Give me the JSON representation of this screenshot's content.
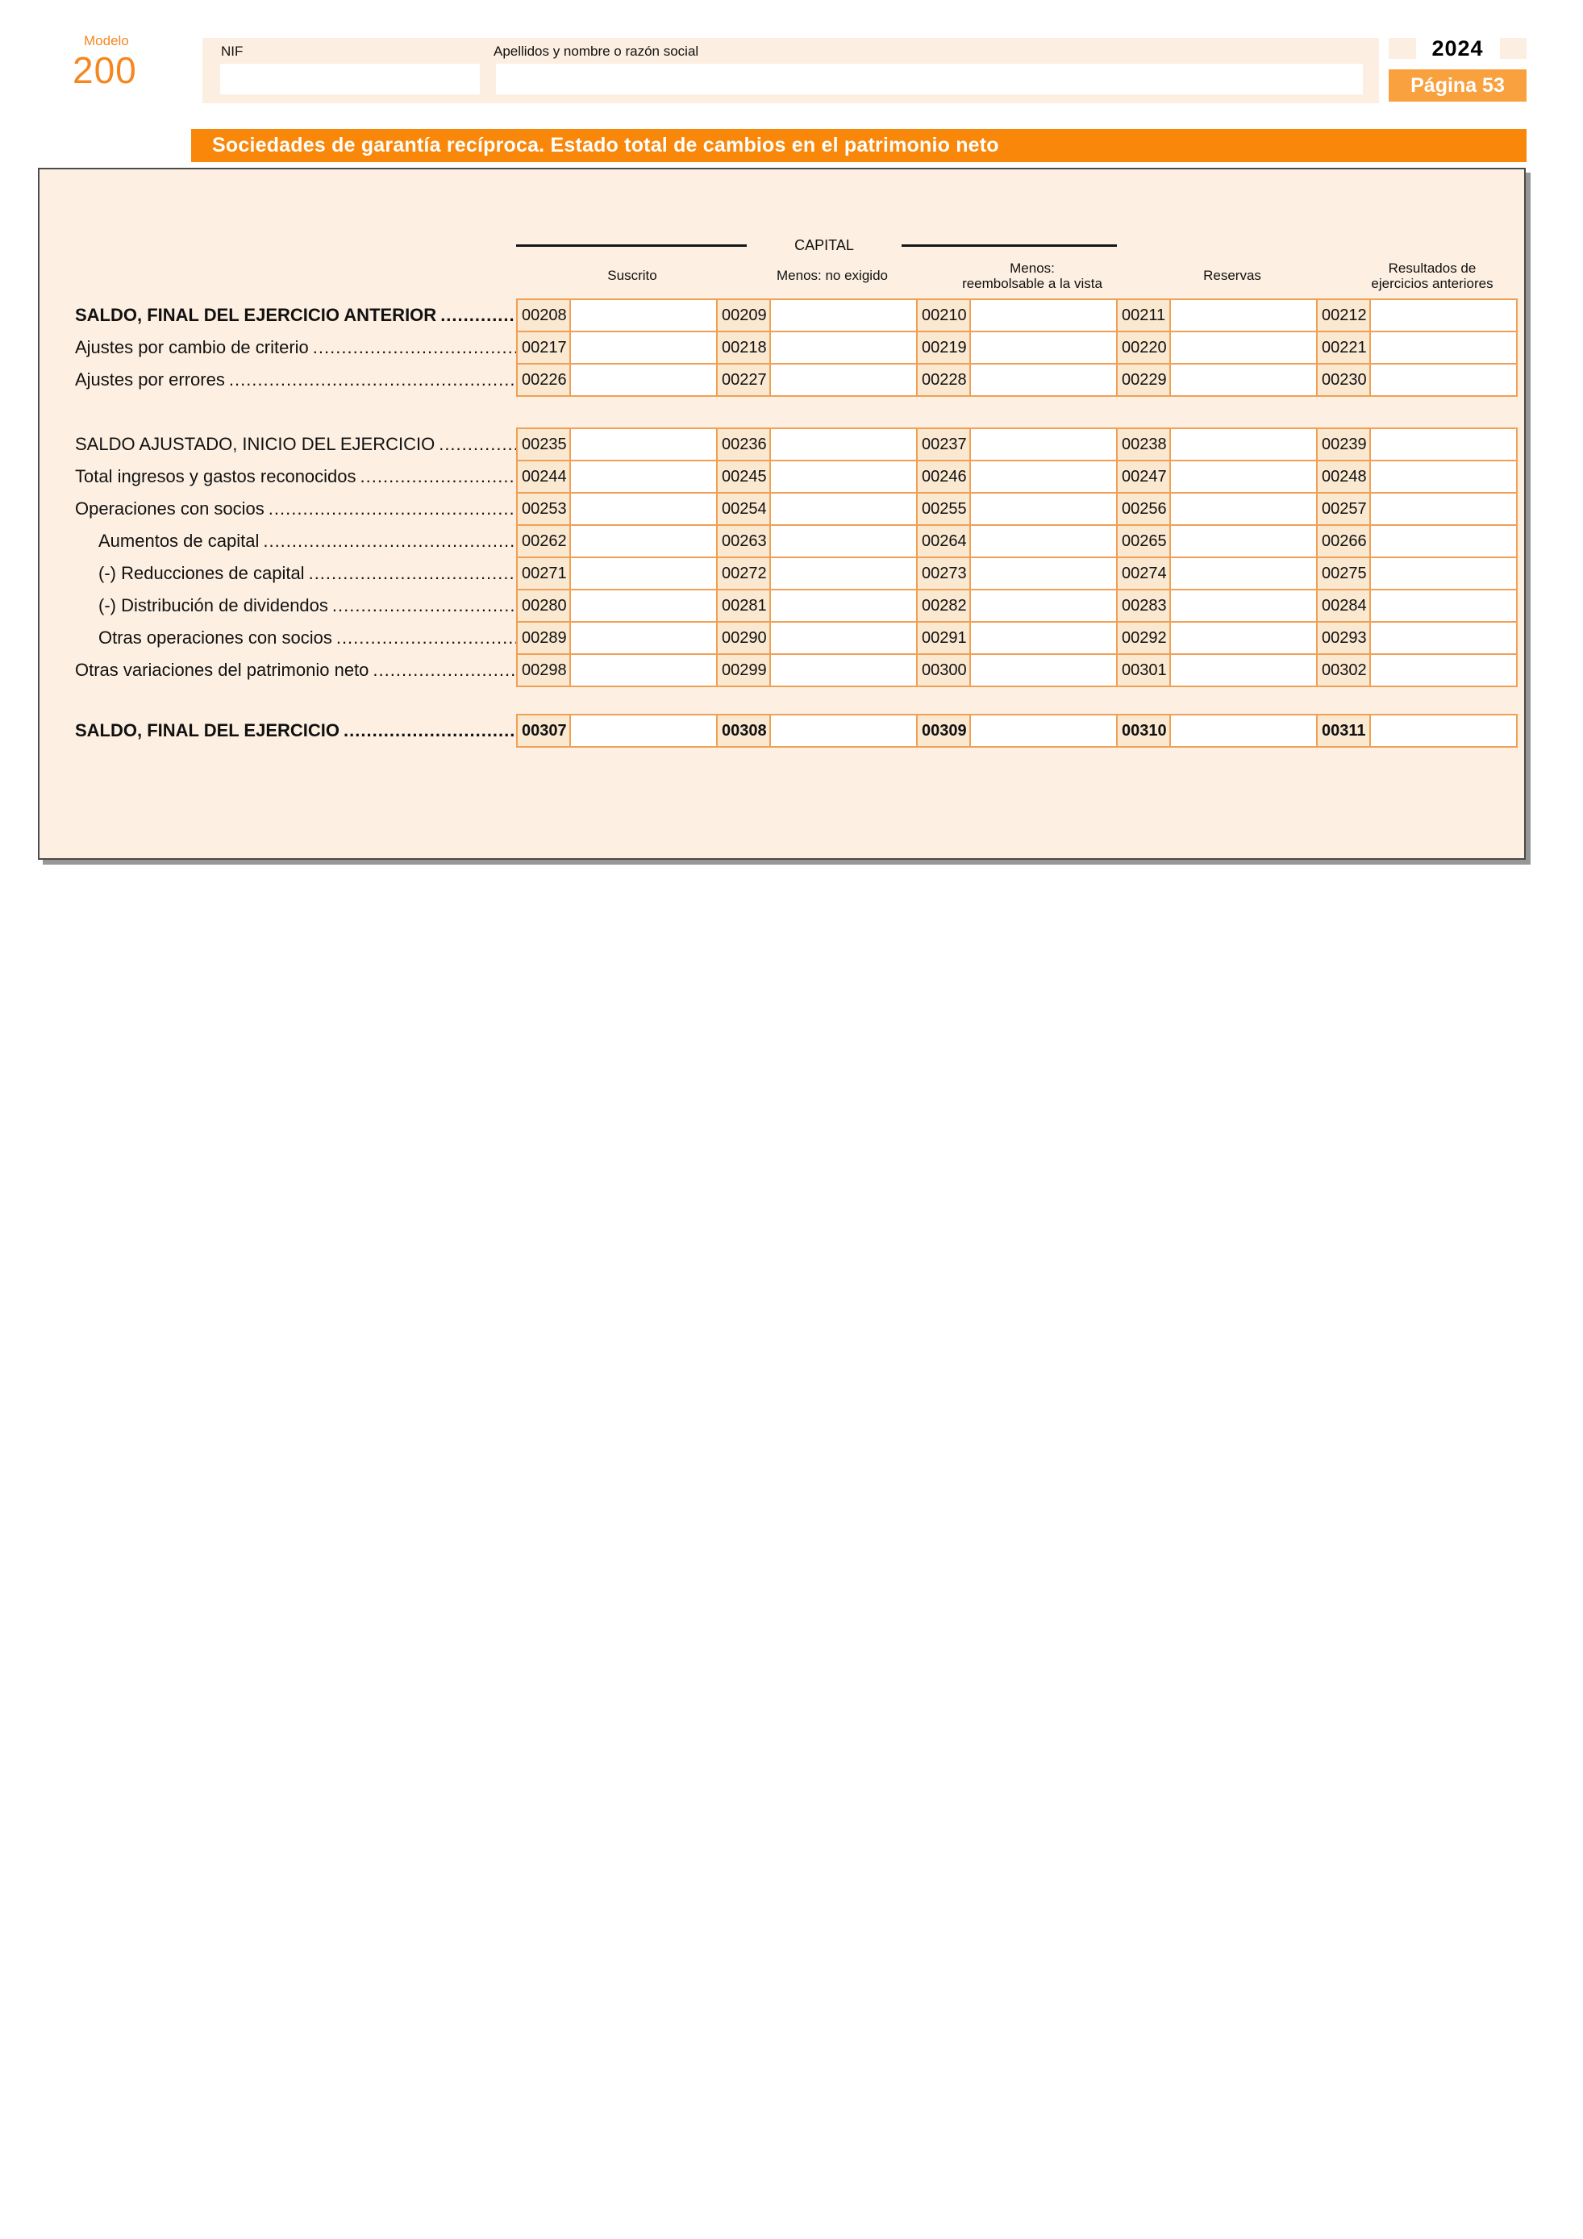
{
  "form": {
    "modelo_label": "Modelo",
    "modelo_number": "200",
    "year": "2024",
    "page_label": "Página 53",
    "nif_label": "NIF",
    "nif_value": "",
    "name_label": "Apellidos y nombre o razón social",
    "name_value": ""
  },
  "section_title": "Sociedades de garantía recíproca. Estado total de cambios en el patrimonio neto",
  "table": {
    "group_header": "CAPITAL",
    "columns": [
      {
        "lines": [
          "Suscrito"
        ]
      },
      {
        "lines": [
          "Menos: no exigido"
        ]
      },
      {
        "lines": [
          "Menos:",
          "reembolsable a la vista"
        ]
      },
      {
        "lines": [
          "Reservas"
        ]
      },
      {
        "lines": [
          "Resultados de",
          "ejercicios anteriores"
        ]
      }
    ],
    "rows": [
      {
        "label": "SALDO, FINAL DEL EJERCICIO ANTERIOR",
        "bold": true,
        "indent": false,
        "codes_bold": false,
        "codes": [
          "00208",
          "00209",
          "00210",
          "00211",
          "00212"
        ],
        "values": [
          "",
          "",
          "",
          "",
          ""
        ]
      },
      {
        "label": "Ajustes por cambio de criterio",
        "bold": false,
        "indent": false,
        "codes_bold": false,
        "codes": [
          "00217",
          "00218",
          "00219",
          "00220",
          "00221"
        ],
        "values": [
          "",
          "",
          "",
          "",
          ""
        ]
      },
      {
        "label": "Ajustes por errores",
        "bold": false,
        "indent": false,
        "codes_bold": false,
        "codes": [
          "00226",
          "00227",
          "00228",
          "00229",
          "00230"
        ],
        "values": [
          "",
          "",
          "",
          "",
          ""
        ]
      },
      {
        "label": "SALDO AJUSTADO, INICIO DEL EJERCICIO",
        "bold": false,
        "indent": false,
        "codes_bold": false,
        "codes": [
          "00235",
          "00236",
          "00237",
          "00238",
          "00239"
        ],
        "values": [
          "",
          "",
          "",
          "",
          ""
        ]
      },
      {
        "label": "Total ingresos y gastos reconocidos",
        "bold": false,
        "indent": false,
        "codes_bold": false,
        "codes": [
          "00244",
          "00245",
          "00246",
          "00247",
          "00248"
        ],
        "values": [
          "",
          "",
          "",
          "",
          ""
        ]
      },
      {
        "label": "Operaciones con socios",
        "bold": false,
        "indent": false,
        "codes_bold": false,
        "codes": [
          "00253",
          "00254",
          "00255",
          "00256",
          "00257"
        ],
        "values": [
          "",
          "",
          "",
          "",
          ""
        ]
      },
      {
        "label": "Aumentos de capital",
        "bold": false,
        "indent": true,
        "codes_bold": false,
        "codes": [
          "00262",
          "00263",
          "00264",
          "00265",
          "00266"
        ],
        "values": [
          "",
          "",
          "",
          "",
          ""
        ]
      },
      {
        "label": "(-) Reducciones de capital",
        "bold": false,
        "indent": true,
        "codes_bold": false,
        "codes": [
          "00271",
          "00272",
          "00273",
          "00274",
          "00275"
        ],
        "values": [
          "",
          "",
          "",
          "",
          ""
        ]
      },
      {
        "label": "(-) Distribución de dividendos",
        "bold": false,
        "indent": true,
        "codes_bold": false,
        "codes": [
          "00280",
          "00281",
          "00282",
          "00283",
          "00284"
        ],
        "values": [
          "",
          "",
          "",
          "",
          ""
        ]
      },
      {
        "label": "Otras operaciones con socios",
        "bold": false,
        "indent": true,
        "codes_bold": false,
        "codes": [
          "00289",
          "00290",
          "00291",
          "00292",
          "00293"
        ],
        "values": [
          "",
          "",
          "",
          "",
          ""
        ]
      },
      {
        "label": "Otras variaciones del patrimonio neto",
        "bold": false,
        "indent": false,
        "codes_bold": false,
        "codes": [
          "00298",
          "00299",
          "00300",
          "00301",
          "00302"
        ],
        "values": [
          "",
          "",
          "",
          "",
          ""
        ]
      },
      {
        "label": "SALDO, FINAL DEL EJERCICIO",
        "bold": true,
        "indent": false,
        "codes_bold": true,
        "codes": [
          "00307",
          "00308",
          "00309",
          "00310",
          "00311"
        ],
        "values": [
          "",
          "",
          "",
          "",
          ""
        ]
      }
    ]
  },
  "colors": {
    "accent_orange": "#F8870A",
    "badge_orange": "#F9A13F",
    "cell_border_orange": "#F0A055",
    "panel_cream": "#FDF0E2",
    "code_cell_peach": "#FBE8D1",
    "header_peach": "#FCEEE0",
    "brand_orange_text": "#F6861F",
    "page_background": "#FFFFFF"
  }
}
